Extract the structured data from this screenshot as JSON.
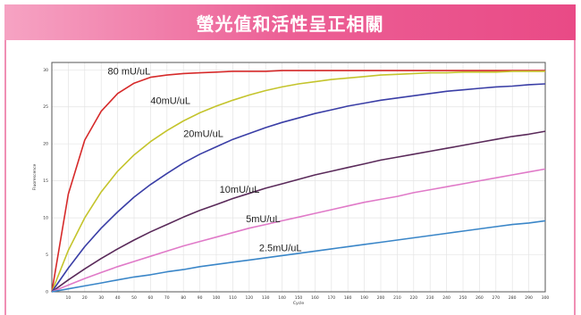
{
  "banner": {
    "title": "螢光值和活性呈正相關",
    "gradient_start": "#f6a3c3",
    "gradient_end": "#e94a86",
    "border_color": "#f08fb4"
  },
  "chart_data": {
    "type": "line",
    "title": "",
    "xlabel": "Cycle",
    "ylabel": "Fluorescence",
    "xlim": [
      0,
      300
    ],
    "ylim": [
      0,
      31
    ],
    "xticks": [
      10,
      20,
      30,
      40,
      50,
      60,
      70,
      80,
      90,
      100,
      110,
      120,
      130,
      140,
      150,
      160,
      170,
      180,
      190,
      200,
      210,
      220,
      230,
      240,
      250,
      260,
      270,
      280,
      290,
      300
    ],
    "yticks": [
      0,
      5,
      10,
      15,
      20,
      25,
      30
    ],
    "grid": true,
    "legend": "none (inline curve labels)",
    "x": [
      0,
      10,
      20,
      30,
      40,
      50,
      60,
      70,
      80,
      90,
      100,
      110,
      120,
      130,
      140,
      150,
      160,
      170,
      180,
      190,
      200,
      210,
      220,
      230,
      240,
      250,
      260,
      270,
      280,
      290,
      300
    ],
    "series": [
      {
        "name": "80 mU/uL",
        "color": "#d62a2a",
        "label_at": [
          34,
          29.4
        ],
        "values": [
          0,
          13.2,
          20.5,
          24.4,
          26.8,
          28.2,
          29.0,
          29.3,
          29.5,
          29.6,
          29.7,
          29.8,
          29.8,
          29.8,
          29.9,
          29.9,
          29.9,
          29.9,
          29.9,
          29.9,
          29.9,
          29.9,
          29.9,
          29.9,
          29.9,
          29.9,
          29.9,
          29.9,
          29.9,
          29.9,
          29.9
        ]
      },
      {
        "name": "40mU/uL",
        "color": "#c4c42c",
        "label_at": [
          60,
          25.4
        ],
        "values": [
          0,
          5.6,
          10.0,
          13.5,
          16.3,
          18.5,
          20.3,
          21.8,
          23.1,
          24.2,
          25.1,
          25.9,
          26.6,
          27.2,
          27.7,
          28.1,
          28.4,
          28.7,
          28.9,
          29.1,
          29.3,
          29.4,
          29.5,
          29.6,
          29.6,
          29.7,
          29.7,
          29.7,
          29.8,
          29.8,
          29.8
        ]
      },
      {
        "name": "20mU/uL",
        "color": "#3a3ea6",
        "label_at": [
          80,
          20.9
        ],
        "values": [
          0,
          3.2,
          6.1,
          8.6,
          10.8,
          12.8,
          14.5,
          16.0,
          17.4,
          18.6,
          19.6,
          20.6,
          21.4,
          22.2,
          22.9,
          23.5,
          24.1,
          24.6,
          25.1,
          25.5,
          25.9,
          26.2,
          26.5,
          26.8,
          27.1,
          27.3,
          27.5,
          27.7,
          27.8,
          28.0,
          28.1
        ]
      },
      {
        "name": "10mU/uL",
        "color": "#5a2a5a",
        "label_at": [
          102,
          13.4
        ],
        "values": [
          0,
          1.6,
          3.1,
          4.5,
          5.8,
          7.0,
          8.1,
          9.1,
          10.1,
          11.0,
          11.8,
          12.6,
          13.3,
          14.0,
          14.6,
          15.2,
          15.8,
          16.3,
          16.8,
          17.3,
          17.8,
          18.2,
          18.6,
          19.0,
          19.4,
          19.8,
          20.2,
          20.6,
          21.0,
          21.3,
          21.7
        ]
      },
      {
        "name": "5mU/uL",
        "color": "#e07ac8",
        "label_at": [
          118,
          9.4
        ],
        "values": [
          0,
          0.9,
          1.8,
          2.6,
          3.4,
          4.1,
          4.8,
          5.5,
          6.2,
          6.8,
          7.4,
          8.0,
          8.6,
          9.1,
          9.6,
          10.1,
          10.6,
          11.1,
          11.6,
          12.1,
          12.5,
          12.9,
          13.4,
          13.8,
          14.2,
          14.6,
          15.0,
          15.4,
          15.8,
          16.2,
          16.6
        ]
      },
      {
        "name": "2.5mU/uL",
        "color": "#3a86c8",
        "label_at": [
          126,
          5.5
        ],
        "values": [
          0,
          0.4,
          0.8,
          1.2,
          1.6,
          2.0,
          2.3,
          2.7,
          3.0,
          3.4,
          3.7,
          4.0,
          4.3,
          4.6,
          4.9,
          5.2,
          5.5,
          5.8,
          6.1,
          6.4,
          6.7,
          7.0,
          7.3,
          7.6,
          7.9,
          8.2,
          8.5,
          8.8,
          9.1,
          9.3,
          9.6
        ]
      }
    ]
  }
}
